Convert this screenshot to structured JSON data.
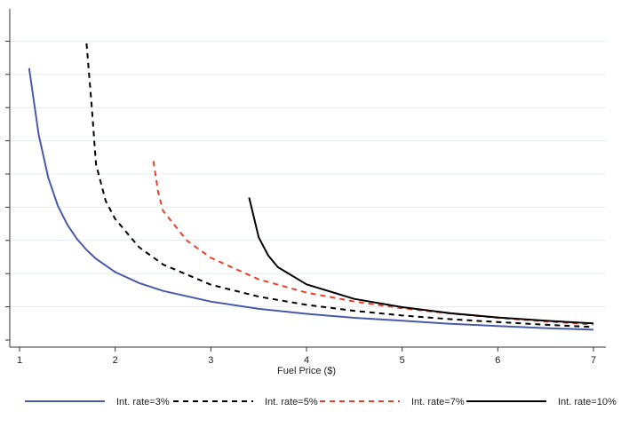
{
  "chart_data": {
    "type": "line",
    "title": "",
    "xlabel": "Fuel Price ($)",
    "ylabel": "",
    "xlim": [
      1,
      7
    ],
    "ylim": [
      0,
      1
    ],
    "x_ticks": [
      "1",
      "2",
      "3",
      "4",
      "5",
      "6",
      "7"
    ],
    "grid": true,
    "legend_position": "bottom",
    "series": [
      {
        "name": "Int. rate=3%",
        "color": "#4a5aa8",
        "dash": "solid",
        "points": [
          [
            1.1,
            0.82
          ],
          [
            1.2,
            0.62
          ],
          [
            1.3,
            0.49
          ],
          [
            1.4,
            0.405
          ],
          [
            1.5,
            0.348
          ],
          [
            1.6,
            0.305
          ],
          [
            1.7,
            0.272
          ],
          [
            1.8,
            0.245
          ],
          [
            2.0,
            0.205
          ],
          [
            2.25,
            0.172
          ],
          [
            2.5,
            0.148
          ],
          [
            3.0,
            0.116
          ],
          [
            3.5,
            0.094
          ],
          [
            4.0,
            0.079
          ],
          [
            4.5,
            0.067
          ],
          [
            5.0,
            0.058
          ],
          [
            5.5,
            0.049
          ],
          [
            6.0,
            0.042
          ],
          [
            6.5,
            0.036
          ],
          [
            7.0,
            0.031
          ]
        ]
      },
      {
        "name": "Int. rate=5%",
        "color": "#000000",
        "dash": "6,5",
        "points": [
          [
            1.7,
            0.895
          ],
          [
            1.75,
            0.72
          ],
          [
            1.8,
            0.53
          ],
          [
            1.9,
            0.42
          ],
          [
            2.0,
            0.365
          ],
          [
            2.25,
            0.28
          ],
          [
            2.5,
            0.228
          ],
          [
            3.0,
            0.167
          ],
          [
            3.5,
            0.131
          ],
          [
            4.0,
            0.106
          ],
          [
            4.5,
            0.088
          ],
          [
            5.0,
            0.074
          ],
          [
            5.5,
            0.063
          ],
          [
            6.0,
            0.054
          ],
          [
            6.5,
            0.046
          ],
          [
            7.0,
            0.039
          ]
        ]
      },
      {
        "name": "Int. rate=7%",
        "color": "#e8402a",
        "dash": "6,5",
        "points": [
          [
            2.4,
            0.54
          ],
          [
            2.45,
            0.445
          ],
          [
            2.5,
            0.39
          ],
          [
            2.75,
            0.3
          ],
          [
            3.0,
            0.248
          ],
          [
            3.5,
            0.183
          ],
          [
            4.0,
            0.143
          ],
          [
            4.5,
            0.116
          ],
          [
            5.0,
            0.096
          ],
          [
            5.5,
            0.08
          ],
          [
            6.0,
            0.067
          ],
          [
            6.5,
            0.056
          ],
          [
            7.0,
            0.047
          ]
        ]
      },
      {
        "name": "Int. rate=10%",
        "color": "#000000",
        "dash": "solid",
        "points": [
          [
            3.4,
            0.43
          ],
          [
            3.5,
            0.31
          ],
          [
            3.6,
            0.255
          ],
          [
            3.7,
            0.22
          ],
          [
            4.0,
            0.168
          ],
          [
            4.5,
            0.124
          ],
          [
            5.0,
            0.099
          ],
          [
            5.5,
            0.081
          ],
          [
            6.0,
            0.068
          ],
          [
            6.5,
            0.058
          ],
          [
            7.0,
            0.05
          ]
        ]
      }
    ]
  }
}
